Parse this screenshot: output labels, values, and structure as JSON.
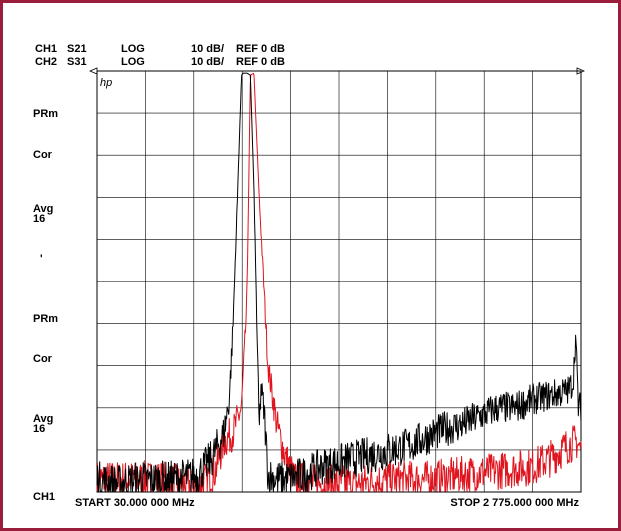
{
  "header": {
    "ch1": {
      "channel": "CH1",
      "param": "S21",
      "format": "LOG",
      "scale": "10 dB/",
      "ref": "REF 0 dB"
    },
    "ch2": {
      "channel": "CH2",
      "param": "S31",
      "format": "LOG",
      "scale": "10 dB/",
      "ref": "REF 0 dB"
    }
  },
  "logo": "hp",
  "annotations_left": {
    "ch1": [
      {
        "label": "PRm"
      },
      {
        "label": "Cor"
      },
      {
        "label": "Avg",
        "sub": "16"
      },
      {
        "label": "'"
      }
    ],
    "ch2": [
      {
        "label": "PRm"
      },
      {
        "label": "Cor"
      },
      {
        "label": "Avg",
        "sub": "16"
      }
    ]
  },
  "footer": {
    "channel": "CH1",
    "start": "START 30.000 000 MHz",
    "stop": "STOP 2 775.000 000 MHz"
  },
  "colors": {
    "frame": "#9b1d3c",
    "ch1": "#000000",
    "ch2": "#e0141e",
    "grid": "#000000"
  },
  "chart_data": {
    "type": "line",
    "grid": true,
    "x_unit": "MHz",
    "xlim": [
      30,
      2775
    ],
    "y_unit": "dB",
    "ylim": [
      -100,
      0
    ],
    "series": [
      {
        "name": "S21",
        "color": "#000000",
        "x": [
          30,
          150,
          280,
          450,
          600,
          680,
          750,
          780,
          800,
          820,
          850,
          860,
          880,
          900,
          920,
          950,
          960,
          980,
          1000,
          1050,
          1100,
          1200,
          1300,
          1400,
          1500,
          1600,
          1700,
          1800,
          1900,
          2000,
          2100,
          2200,
          2300,
          2400,
          2500,
          2600,
          2700,
          2730,
          2745,
          2760,
          2775
        ],
        "y": [
          -97,
          -98,
          -97,
          -97,
          -96,
          -92,
          -86,
          -78,
          -62,
          -38,
          -1,
          -0.5,
          -0.5,
          -1,
          -28,
          -86,
          -75,
          -82,
          -96,
          -97,
          -97,
          -96,
          -94,
          -93,
          -92,
          -91,
          -90,
          -89,
          -87,
          -85,
          -84,
          -82,
          -80,
          -80,
          -78,
          -77,
          -76,
          -74,
          -63,
          -80,
          -80
        ]
      },
      {
        "name": "S31",
        "color": "#e0141e",
        "x": [
          30,
          400,
          500,
          600,
          650,
          700,
          750,
          800,
          850,
          880,
          900,
          920,
          950,
          1000,
          1050,
          1100,
          1150,
          1300,
          1500,
          1700,
          1900,
          2100,
          2300,
          2500,
          2600,
          2700,
          2750,
          2775
        ],
        "y": [
          -97,
          -97,
          -98,
          -99,
          -97,
          -95,
          -88,
          -86,
          -80,
          -55,
          -1,
          -0.5,
          -30,
          -70,
          -84,
          -92,
          -97,
          -98,
          -98,
          -97,
          -97,
          -96,
          -95,
          -94,
          -92,
          -89,
          -88,
          -90
        ]
      }
    ]
  }
}
